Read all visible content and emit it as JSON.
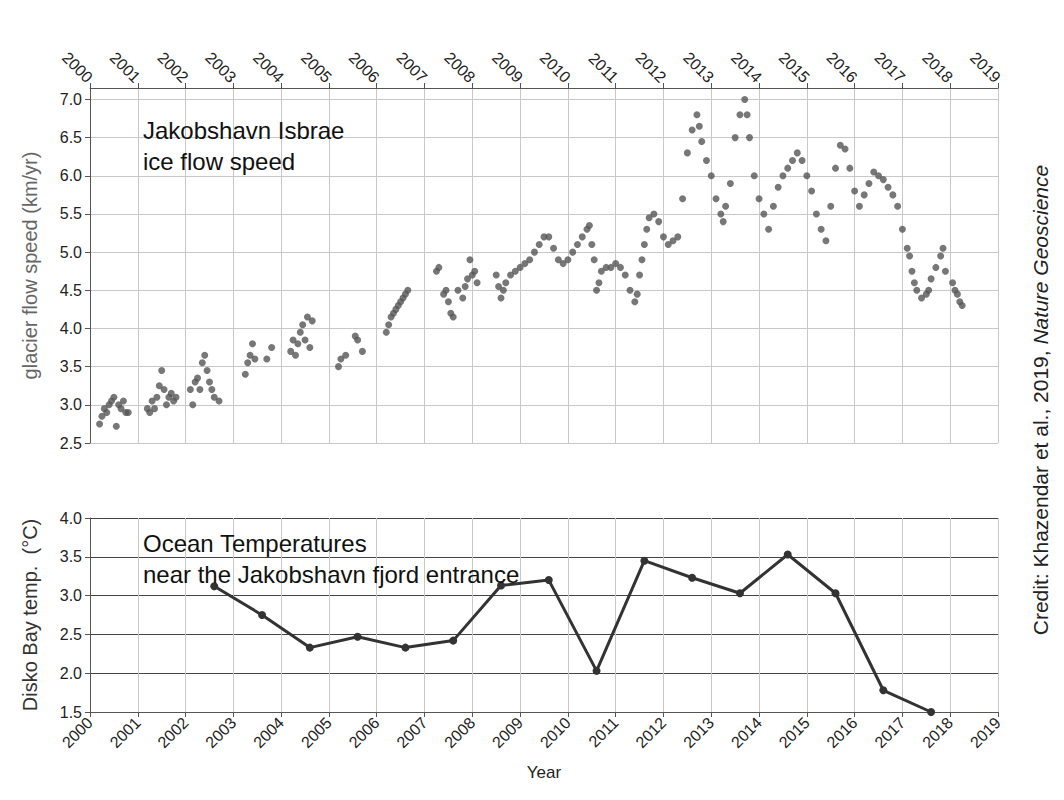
{
  "chart_data": [
    {
      "type": "scatter",
      "title": "Jakobshavn Isbrae\nice flow speed",
      "ylabel": "glacier flow speed (km/yr)",
      "color": "#555555",
      "marker": "circle",
      "grid": true,
      "xlim": [
        2000,
        2019
      ],
      "xticks": [
        2000,
        2001,
        2002,
        2003,
        2004,
        2005,
        2006,
        2007,
        2008,
        2009,
        2010,
        2011,
        2012,
        2013,
        2014,
        2015,
        2016,
        2017,
        2018,
        2019
      ],
      "ylim": [
        2.5,
        7.15
      ],
      "yticks": [
        2.5,
        {
          "value": 3,
          "label": "3.0"
        },
        3.5,
        {
          "value": 4,
          "label": "4.0"
        },
        4.5,
        {
          "value": 5,
          "label": "5.0"
        },
        5.5,
        {
          "value": 6,
          "label": "6.0"
        },
        6.5,
        {
          "value": 7,
          "label": "7.0"
        }
      ],
      "x": [
        2000.2,
        2000.25,
        2000.3,
        2000.35,
        2000.4,
        2000.45,
        2000.5,
        2000.55,
        2000.6,
        2000.65,
        2000.7,
        2000.75,
        2000.8,
        2001.2,
        2001.25,
        2001.3,
        2001.35,
        2001.4,
        2001.45,
        2001.5,
        2001.55,
        2001.6,
        2001.65,
        2001.7,
        2001.75,
        2001.8,
        2002.1,
        2002.15,
        2002.2,
        2002.25,
        2002.3,
        2002.35,
        2002.4,
        2002.45,
        2002.5,
        2002.55,
        2002.6,
        2002.7,
        2003.25,
        2003.3,
        2003.35,
        2003.4,
        2003.45,
        2003.7,
        2003.8,
        2004.2,
        2004.25,
        2004.3,
        2004.35,
        2004.4,
        2004.45,
        2004.5,
        2004.55,
        2004.6,
        2004.65,
        2005.2,
        2005.25,
        2005.35,
        2005.55,
        2005.6,
        2005.7,
        2006.2,
        2006.25,
        2006.3,
        2006.35,
        2006.4,
        2006.45,
        2006.5,
        2006.55,
        2006.6,
        2006.65,
        2007.25,
        2007.3,
        2007.4,
        2007.45,
        2007.5,
        2007.55,
        2007.6,
        2007.7,
        2007.8,
        2007.85,
        2007.9,
        2007.95,
        2008.0,
        2008.05,
        2008.1,
        2008.5,
        2008.55,
        2008.6,
        2008.65,
        2008.7,
        2008.8,
        2008.9,
        2009.0,
        2009.1,
        2009.2,
        2009.3,
        2009.4,
        2009.5,
        2009.6,
        2009.7,
        2009.8,
        2009.9,
        2010.0,
        2010.1,
        2010.2,
        2010.3,
        2010.4,
        2010.45,
        2010.5,
        2010.55,
        2010.6,
        2010.65,
        2010.7,
        2010.8,
        2010.9,
        2011.0,
        2011.1,
        2011.2,
        2011.3,
        2011.4,
        2011.45,
        2011.5,
        2011.55,
        2011.6,
        2011.65,
        2011.7,
        2011.8,
        2011.9,
        2012.0,
        2012.1,
        2012.2,
        2012.3,
        2012.4,
        2012.5,
        2012.6,
        2012.7,
        2012.75,
        2012.8,
        2012.9,
        2013.0,
        2013.1,
        2013.2,
        2013.25,
        2013.3,
        2013.4,
        2013.5,
        2013.6,
        2013.7,
        2013.75,
        2013.8,
        2013.9,
        2014.0,
        2014.1,
        2014.2,
        2014.3,
        2014.4,
        2014.5,
        2014.6,
        2014.7,
        2014.8,
        2014.9,
        2015.0,
        2015.1,
        2015.2,
        2015.3,
        2015.4,
        2015.5,
        2015.6,
        2015.7,
        2015.8,
        2015.9,
        2016.0,
        2016.1,
        2016.2,
        2016.3,
        2016.4,
        2016.5,
        2016.6,
        2016.7,
        2016.8,
        2016.9,
        2017.0,
        2017.1,
        2017.15,
        2017.2,
        2017.25,
        2017.3,
        2017.4,
        2017.5,
        2017.55,
        2017.6,
        2017.7,
        2017.8,
        2017.85,
        2017.9,
        2018.05,
        2018.1,
        2018.15,
        2018.2,
        2018.25
      ],
      "values": [
        2.75,
        2.85,
        2.95,
        2.9,
        3.0,
        3.05,
        3.1,
        2.72,
        3.0,
        2.95,
        3.05,
        2.9,
        2.9,
        2.95,
        2.9,
        3.05,
        2.95,
        3.1,
        3.25,
        3.45,
        3.2,
        3.0,
        3.1,
        3.15,
        3.05,
        3.1,
        3.2,
        3.0,
        3.3,
        3.35,
        3.2,
        3.55,
        3.65,
        3.45,
        3.3,
        3.2,
        3.1,
        3.05,
        3.4,
        3.55,
        3.65,
        3.8,
        3.6,
        3.6,
        3.75,
        3.7,
        3.85,
        3.65,
        3.8,
        3.95,
        4.05,
        3.85,
        4.15,
        3.75,
        4.1,
        3.5,
        3.6,
        3.65,
        3.9,
        3.85,
        3.7,
        3.95,
        4.05,
        4.15,
        4.2,
        4.25,
        4.3,
        4.35,
        4.4,
        4.45,
        4.5,
        4.75,
        4.8,
        4.45,
        4.5,
        4.35,
        4.2,
        4.15,
        4.5,
        4.4,
        4.55,
        4.65,
        4.9,
        4.7,
        4.75,
        4.6,
        4.7,
        4.55,
        4.4,
        4.5,
        4.6,
        4.7,
        4.75,
        4.8,
        4.85,
        4.9,
        5.0,
        5.1,
        5.2,
        5.2,
        5.05,
        4.9,
        4.85,
        4.9,
        5.0,
        5.1,
        5.2,
        5.3,
        5.35,
        5.1,
        4.9,
        4.5,
        4.6,
        4.75,
        4.8,
        4.8,
        4.85,
        4.8,
        4.7,
        4.5,
        4.35,
        4.45,
        4.7,
        4.9,
        5.1,
        5.3,
        5.45,
        5.5,
        5.4,
        5.2,
        5.1,
        5.15,
        5.2,
        5.7,
        6.3,
        6.6,
        6.8,
        6.65,
        6.45,
        6.2,
        6.0,
        5.7,
        5.5,
        5.4,
        5.6,
        5.9,
        6.5,
        6.8,
        7.0,
        6.8,
        6.5,
        6.0,
        5.7,
        5.5,
        5.3,
        5.6,
        5.85,
        6.0,
        6.1,
        6.2,
        6.3,
        6.2,
        6.0,
        5.8,
        5.5,
        5.3,
        5.15,
        5.6,
        6.1,
        6.4,
        6.35,
        6.1,
        5.8,
        5.6,
        5.75,
        5.9,
        6.05,
        6.0,
        5.95,
        5.85,
        5.75,
        5.6,
        5.3,
        5.05,
        4.95,
        4.75,
        4.6,
        4.5,
        4.4,
        4.45,
        4.5,
        4.65,
        4.8,
        4.95,
        5.05,
        4.75,
        4.6,
        4.5,
        4.45,
        4.35,
        4.3
      ]
    },
    {
      "type": "line",
      "title": "Ocean Temperatures\nnear the Jakobshavn fjord entrance",
      "xlabel": "Year",
      "ylabel": "Disko Bay temp.  (°C)",
      "color": "#333333",
      "marker": "circle",
      "grid": true,
      "xlim": [
        2000,
        2019
      ],
      "xticks": [
        2000,
        2001,
        2002,
        2003,
        2004,
        2005,
        2006,
        2007,
        2008,
        2009,
        2010,
        2011,
        2012,
        2013,
        2014,
        2015,
        2016,
        2017,
        2018,
        2019
      ],
      "ylim": [
        1.5,
        4
      ],
      "yticks": [
        1.5,
        {
          "value": 2,
          "label": "2.0"
        },
        2.5,
        {
          "value": 3,
          "label": "3.0"
        },
        3.5,
        {
          "value": 4,
          "label": "4.0"
        }
      ],
      "x": [
        2002.6,
        2003.6,
        2004.6,
        2005.6,
        2006.6,
        2007.6,
        2008.6,
        2009.6,
        2010.6,
        2011.6,
        2012.6,
        2013.6,
        2014.6,
        2015.6,
        2016.6,
        2017.6
      ],
      "values": [
        3.12,
        2.75,
        2.33,
        2.47,
        2.33,
        2.42,
        3.13,
        3.2,
        2.03,
        3.45,
        3.23,
        3.03,
        3.53,
        3.03,
        1.78,
        1.5
      ],
      "annotations": [
        "Credit: Khazendar et al., 2019, Nature Geoscience"
      ]
    }
  ]
}
